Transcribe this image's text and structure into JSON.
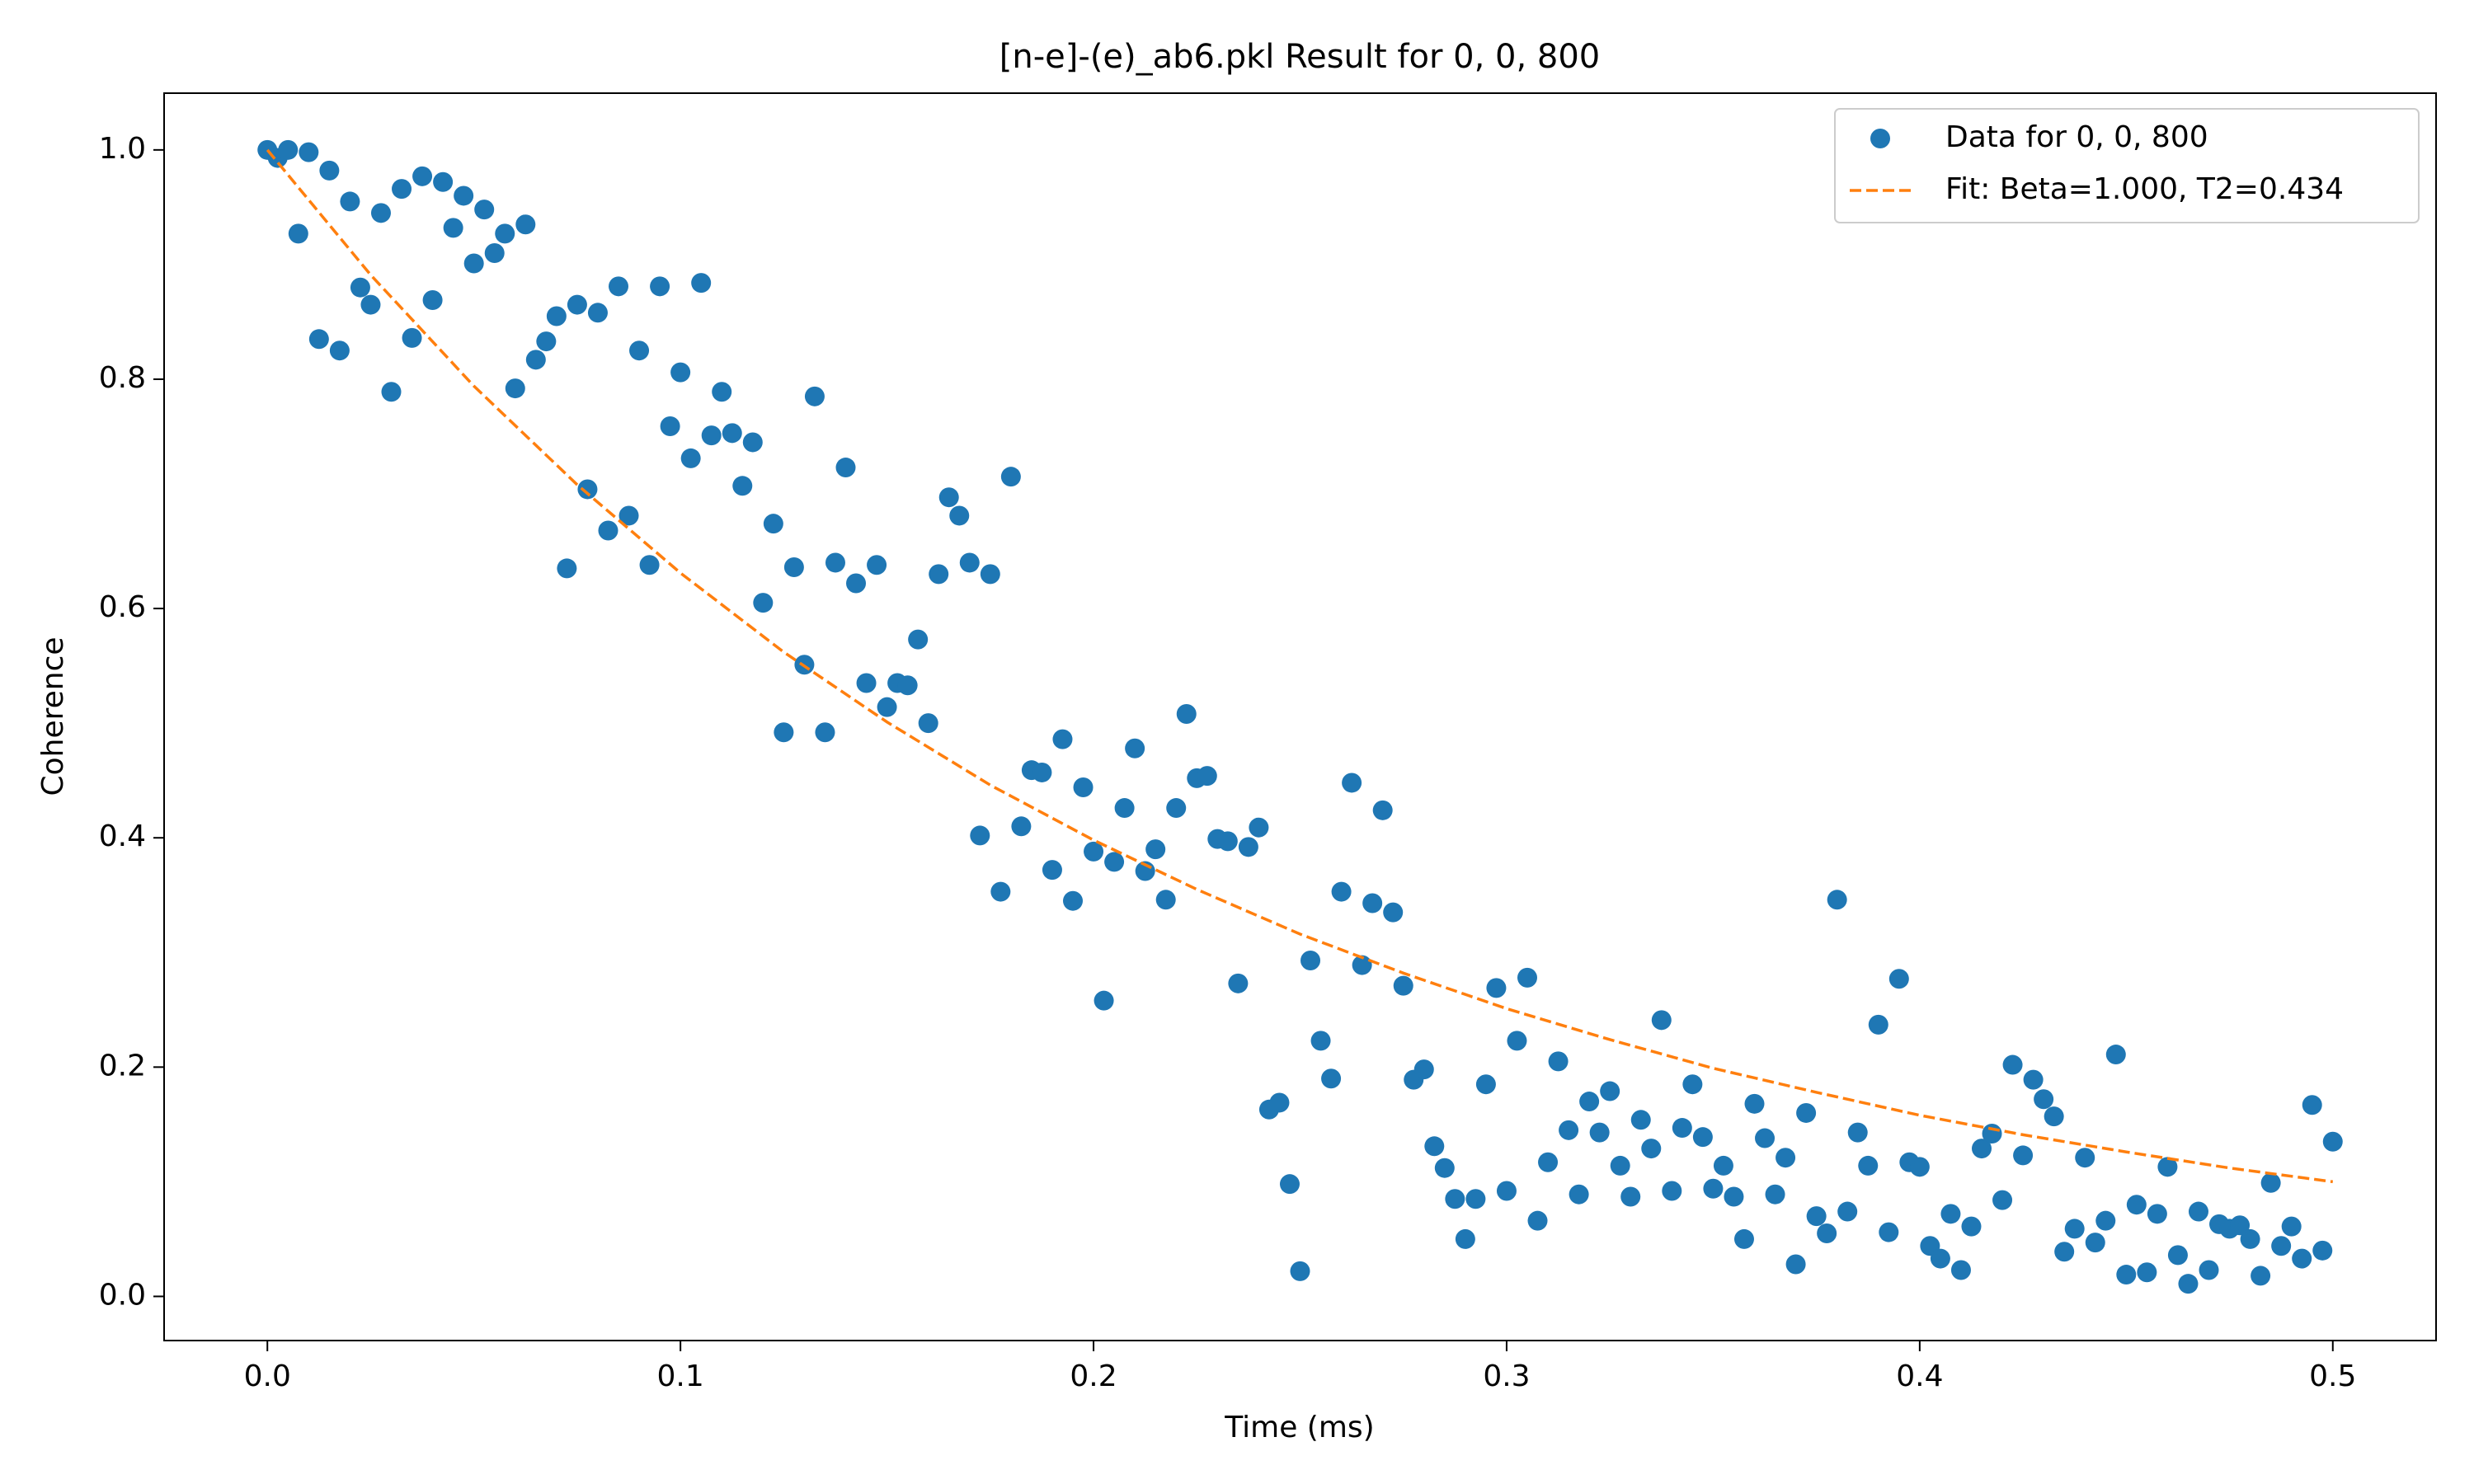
{
  "chart_data": {
    "type": "scatter",
    "title": "[n-e]-(e)_ab6.pkl Result for 0, 0, 800",
    "x_label": "Time (ms)",
    "y_label": "Coherence",
    "xlim": [
      -0.025,
      0.525
    ],
    "ylim": [
      -0.0385,
      1.0495
    ],
    "xticks": [
      {
        "value": 0,
        "label": "0.0"
      },
      0.1,
      0.2,
      0.3,
      0.4,
      0.5
    ],
    "yticks": [
      {
        "value": 0,
        "label": "0.0"
      },
      0.2,
      0.4,
      0.6,
      0.8,
      {
        "value": 1,
        "label": "1.0"
      }
    ],
    "grid": false,
    "legend": "upper right",
    "series": [
      {
        "name": "Data for 0, 0, 800",
        "type": "scatter",
        "color": "#1f77b4",
        "x": [
          0,
          0.0025,
          0.005,
          0.0075,
          0.01,
          0.0125,
          0.015,
          0.0175,
          0.02,
          0.0225,
          0.025,
          0.0275,
          0.03,
          0.0325,
          0.035,
          0.0375,
          0.04,
          0.0425,
          0.045,
          0.0475,
          0.05,
          0.0525,
          0.055,
          0.0575,
          0.06,
          0.0625,
          0.065,
          0.0675,
          0.07,
          0.0725,
          0.075,
          0.0775,
          0.08,
          0.0825,
          0.085,
          0.0875,
          0.09,
          0.0925,
          0.095,
          0.0975,
          0.1,
          0.1025,
          0.105,
          0.1075,
          0.11,
          0.1125,
          0.115,
          0.1175,
          0.12,
          0.1225,
          0.125,
          0.1275,
          0.13,
          0.1325,
          0.135,
          0.1375,
          0.14,
          0.1425,
          0.145,
          0.1475,
          0.15,
          0.1525,
          0.155,
          0.1575,
          0.16,
          0.1625,
          0.165,
          0.1675,
          0.17,
          0.1725,
          0.175,
          0.1775,
          0.18,
          0.1825,
          0.185,
          0.1875,
          0.19,
          0.1925,
          0.195,
          0.1975,
          0.2,
          0.2025,
          0.205,
          0.2075,
          0.21,
          0.2125,
          0.215,
          0.2175,
          0.22,
          0.2225,
          0.225,
          0.2275,
          0.23,
          0.2325,
          0.235,
          0.2375,
          0.24,
          0.2425,
          0.245,
          0.2475,
          0.25,
          0.2525,
          0.255,
          0.2575,
          0.26,
          0.2625,
          0.265,
          0.2675,
          0.27,
          0.2725,
          0.275,
          0.2775,
          0.28,
          0.2825,
          0.285,
          0.2875,
          0.29,
          0.2925,
          0.295,
          0.2975,
          0.3,
          0.3025,
          0.305,
          0.3075,
          0.31,
          0.3125,
          0.315,
          0.3175,
          0.32,
          0.3225,
          0.325,
          0.3275,
          0.33,
          0.3325,
          0.335,
          0.3375,
          0.34,
          0.3425,
          0.345,
          0.3475,
          0.35,
          0.3525,
          0.355,
          0.3575,
          0.36,
          0.3625,
          0.365,
          0.3675,
          0.37,
          0.3725,
          0.375,
          0.3775,
          0.38,
          0.3825,
          0.385,
          0.3875,
          0.39,
          0.3925,
          0.395,
          0.3975,
          0.4,
          0.4025,
          0.405,
          0.4075,
          0.41,
          0.4125,
          0.415,
          0.4175,
          0.42,
          0.4225,
          0.425,
          0.4275,
          0.43,
          0.4325,
          0.435,
          0.4375,
          0.44,
          0.4425,
          0.445,
          0.4475,
          0.45,
          0.4525,
          0.455,
          0.4575,
          0.46,
          0.4625,
          0.465,
          0.4675,
          0.47,
          0.4725,
          0.475,
          0.4775,
          0.48,
          0.4825,
          0.485,
          0.4875,
          0.49,
          0.4925,
          0.495,
          0.4975,
          0.5
        ],
        "values": [
          1.0,
          0.993,
          1.0,
          0.927,
          0.998,
          0.835,
          0.982,
          0.825,
          0.955,
          0.88,
          0.865,
          0.945,
          0.789,
          0.966,
          0.836,
          0.977,
          0.869,
          0.972,
          0.932,
          0.96,
          0.901,
          0.948,
          0.91,
          0.927,
          0.792,
          0.935,
          0.817,
          0.833,
          0.855,
          0.635,
          0.865,
          0.704,
          0.858,
          0.668,
          0.881,
          0.681,
          0.825,
          0.638,
          0.881,
          0.759,
          0.806,
          0.731,
          0.884,
          0.751,
          0.789,
          0.753,
          0.707,
          0.745,
          0.605,
          0.674,
          0.492,
          0.636,
          0.551,
          0.785,
          0.492,
          0.64,
          0.723,
          0.622,
          0.535,
          0.638,
          0.514,
          0.535,
          0.533,
          0.573,
          0.5,
          0.63,
          0.697,
          0.681,
          0.64,
          0.402,
          0.63,
          0.353,
          0.715,
          0.41,
          0.459,
          0.457,
          0.372,
          0.486,
          0.345,
          0.444,
          0.388,
          0.258,
          0.379,
          0.426,
          0.478,
          0.371,
          0.39,
          0.346,
          0.426,
          0.508,
          0.452,
          0.454,
          0.399,
          0.397,
          0.273,
          0.392,
          0.409,
          0.163,
          0.169,
          0.098,
          0.022,
          0.293,
          0.223,
          0.19,
          0.353,
          0.448,
          0.289,
          0.343,
          0.424,
          0.335,
          0.271,
          0.189,
          0.198,
          0.131,
          0.112,
          0.085,
          0.05,
          0.085,
          0.185,
          0.269,
          0.092,
          0.223,
          0.278,
          0.066,
          0.117,
          0.205,
          0.145,
          0.089,
          0.17,
          0.143,
          0.179,
          0.114,
          0.087,
          0.154,
          0.129,
          0.241,
          0.092,
          0.147,
          0.185,
          0.139,
          0.094,
          0.114,
          0.087,
          0.05,
          0.168,
          0.138,
          0.089,
          0.121,
          0.028,
          0.16,
          0.07,
          0.055,
          0.346,
          0.074,
          0.143,
          0.114,
          0.237,
          0.056,
          0.277,
          0.117,
          0.113,
          0.044,
          0.033,
          0.072,
          0.023,
          0.061,
          0.129,
          0.142,
          0.084,
          0.202,
          0.123,
          0.189,
          0.172,
          0.157,
          0.039,
          0.059,
          0.121,
          0.047,
          0.066,
          0.211,
          0.019,
          0.08,
          0.021,
          0.072,
          0.113,
          0.036,
          0.011,
          0.074,
          0.023,
          0.063,
          0.059,
          0.062,
          0.05,
          0.018,
          0.099,
          0.044,
          0.061,
          0.033,
          0.167,
          0.04,
          0.135
        ]
      },
      {
        "name": "Fit: Beta=1.000, T2=0.434",
        "type": "line",
        "color": "#ff7f0e",
        "dash": "dashed",
        "x": [
          0,
          0.025,
          0.05,
          0.075,
          0.1,
          0.125,
          0.15,
          0.175,
          0.2,
          0.225,
          0.25,
          0.275,
          0.3,
          0.325,
          0.35,
          0.375,
          0.4,
          0.425,
          0.45,
          0.475,
          0.5
        ],
        "values": [
          1.0,
          0.891,
          0.794,
          0.708,
          0.631,
          0.562,
          0.501,
          0.446,
          0.398,
          0.355,
          0.316,
          0.282,
          0.251,
          0.224,
          0.199,
          0.178,
          0.158,
          0.141,
          0.126,
          0.112,
          0.1
        ]
      }
    ]
  }
}
